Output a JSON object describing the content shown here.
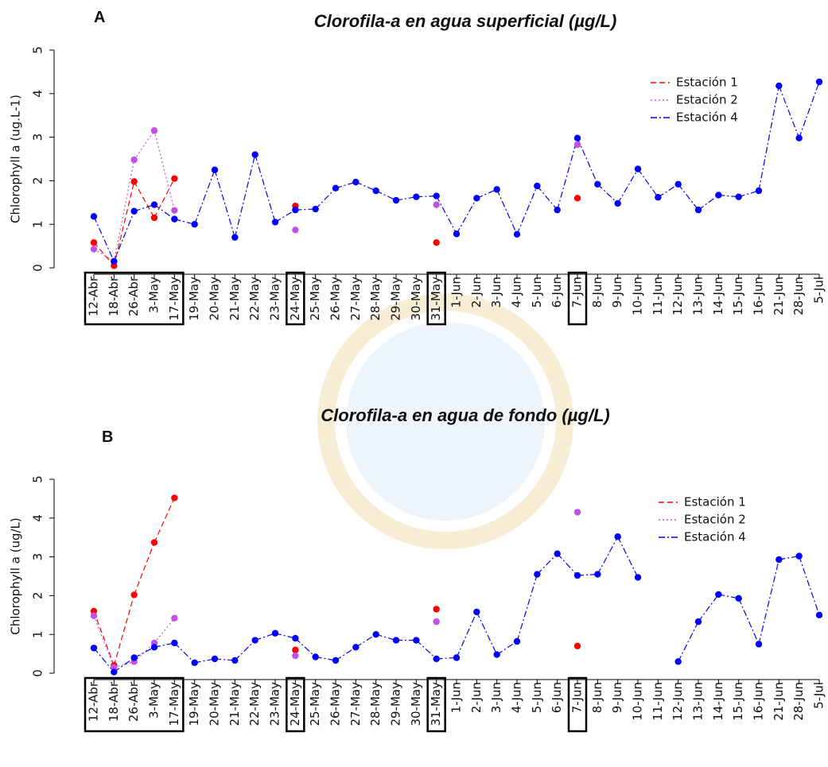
{
  "chart_data": [
    {
      "type": "line",
      "panel_label": "A",
      "title": "Clorofila-a en agua superficial (µg/L)",
      "y_label": "Chlorophyll a (ug.L-1)",
      "categories": [
        "12-Abr",
        "18-Abr",
        "26-Abr",
        "3-May",
        "17-May",
        "19-May",
        "20-May",
        "21-May",
        "22-May",
        "23-May",
        "24-May",
        "25-May",
        "26-May",
        "27-May",
        "28-May",
        "29-May",
        "30-May",
        "31-May",
        "1-Jun",
        "2-Jun",
        "3-Jun",
        "4-Jun",
        "5-Jun",
        "6-Jun",
        "7-Jun",
        "8-Jun",
        "9-Jun",
        "10-Jun",
        "11-Jun",
        "12-Jun",
        "13-Jun",
        "14-Jun",
        "15-Jun",
        "16-Jun",
        "21-Jun",
        "28-Jun",
        "5-Jul"
      ],
      "ylim": [
        0,
        5
      ],
      "yticks": [
        0,
        1,
        2,
        3,
        4,
        5
      ],
      "legend": "top-right",
      "series": [
        {
          "name": "Estación 1",
          "color": "#ff0000",
          "linestyle": "dashed",
          "values": [
            0.58,
            0.05,
            1.98,
            1.15,
            2.05,
            null,
            null,
            null,
            null,
            null,
            1.42,
            null,
            null,
            null,
            null,
            null,
            null,
            0.58,
            null,
            null,
            null,
            null,
            null,
            null,
            1.6,
            null,
            null,
            null,
            null,
            null,
            null,
            null,
            null,
            null,
            null,
            null,
            null
          ]
        },
        {
          "name": "Estación 2",
          "color": "#c050e8",
          "linestyle": "dotted",
          "values": [
            0.43,
            0.15,
            2.48,
            3.15,
            1.32,
            null,
            null,
            null,
            null,
            null,
            0.87,
            null,
            null,
            null,
            null,
            null,
            null,
            1.45,
            null,
            null,
            null,
            null,
            null,
            null,
            2.83,
            null,
            null,
            null,
            null,
            null,
            null,
            null,
            null,
            null,
            null,
            null,
            null
          ]
        },
        {
          "name": "Estación 4",
          "color": "#0000ff",
          "linestyle": "dashdot",
          "values": [
            1.18,
            0.15,
            1.3,
            1.45,
            1.12,
            1.0,
            2.25,
            0.7,
            2.6,
            1.05,
            1.33,
            1.35,
            1.83,
            1.97,
            1.77,
            1.55,
            1.63,
            1.65,
            0.78,
            1.6,
            1.8,
            0.77,
            1.88,
            1.33,
            2.98,
            1.92,
            1.48,
            2.27,
            1.62,
            1.92,
            1.33,
            1.67,
            1.63,
            1.77,
            4.18,
            2.98,
            4.27
          ]
        }
      ]
    },
    {
      "type": "line",
      "panel_label": "B",
      "title": "Clorofila-a en agua de fondo (µg/L)",
      "y_label": "Chlorophyll a  (ug/L)",
      "categories": [
        "12-Abr",
        "18-Abr",
        "26-Abr",
        "3-May",
        "17-May",
        "19-May",
        "20-May",
        "21-May",
        "22-May",
        "23-May",
        "24-May",
        "25-May",
        "26-May",
        "27-May",
        "28-May",
        "29-May",
        "30-May",
        "31-May",
        "1-Jun",
        "2-Jun",
        "3-Jun",
        "4-Jun",
        "5-Jun",
        "6-Jun",
        "7-Jun",
        "8-Jun",
        "9-Jun",
        "10-Jun",
        "11-Jun",
        "12-Jun",
        "13-Jun",
        "14-Jun",
        "15-Jun",
        "16-Jun",
        "21-Jun",
        "28-Jun",
        "5-Jul"
      ],
      "ylim": [
        0,
        5
      ],
      "yticks": [
        0,
        1,
        2,
        3,
        4,
        5
      ],
      "legend": "top-right",
      "series": [
        {
          "name": "Estación 1",
          "color": "#ff0000",
          "linestyle": "dashed",
          "values": [
            1.6,
            0.2,
            2.02,
            3.37,
            4.52,
            null,
            null,
            null,
            null,
            null,
            0.6,
            null,
            null,
            null,
            null,
            null,
            null,
            1.65,
            null,
            null,
            null,
            null,
            null,
            null,
            0.7,
            null,
            null,
            null,
            null,
            null,
            null,
            null,
            null,
            null,
            null,
            null,
            null
          ]
        },
        {
          "name": "Estación 2",
          "color": "#c050e8",
          "linestyle": "dotted",
          "values": [
            1.48,
            0.15,
            0.3,
            0.78,
            1.42,
            null,
            null,
            null,
            null,
            null,
            0.45,
            null,
            null,
            null,
            null,
            null,
            null,
            1.33,
            null,
            null,
            null,
            null,
            null,
            null,
            4.15,
            null,
            null,
            null,
            null,
            null,
            null,
            null,
            null,
            null,
            null,
            null,
            null
          ]
        },
        {
          "name": "Estación 4",
          "color": "#0000ff",
          "linestyle": "dashdot",
          "values": [
            0.65,
            0.03,
            0.4,
            0.67,
            0.78,
            0.27,
            0.37,
            0.33,
            0.85,
            1.03,
            0.9,
            0.42,
            0.33,
            0.67,
            1.0,
            0.85,
            0.85,
            0.37,
            0.4,
            1.58,
            0.48,
            0.82,
            2.55,
            3.08,
            2.52,
            2.55,
            3.52,
            2.47,
            null,
            0.3,
            1.33,
            2.03,
            1.93,
            0.75,
            2.93,
            3.02,
            1.5
          ]
        }
      ]
    }
  ]
}
